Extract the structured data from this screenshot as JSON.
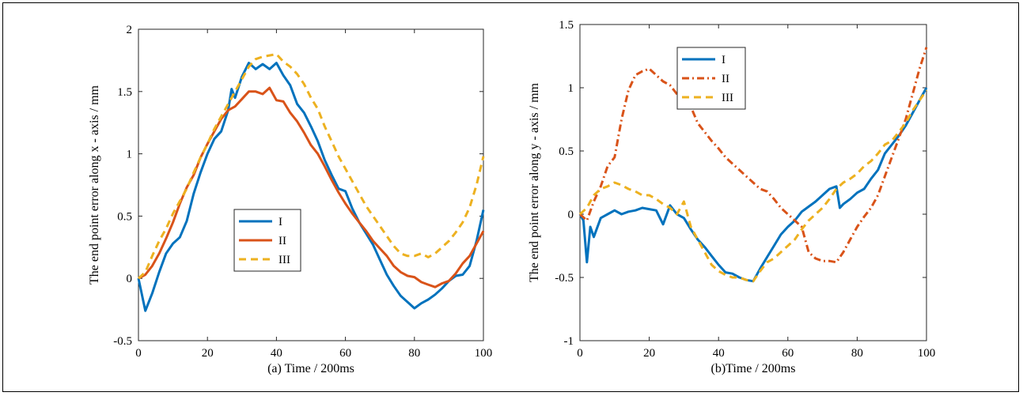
{
  "chart_data": [
    {
      "type": "line",
      "xlabel": "(a) Time / 200ms",
      "ylabel": "The end point error along x - axis / mm",
      "xlim": [
        0,
        100
      ],
      "ylim": [
        -0.5,
        2
      ],
      "xticks": [
        "0",
        "20",
        "40",
        "60",
        "80",
        "100"
      ],
      "yticks": [
        "-0.5",
        "0",
        "0.5",
        "1",
        "1.5",
        "2"
      ],
      "legend_placement": "center-left",
      "series": [
        {
          "name": "I",
          "color": "#0072BD",
          "dash": "solid",
          "x": [
            0,
            2,
            4,
            6,
            8,
            10,
            12,
            14,
            16,
            18,
            20,
            22,
            24,
            26,
            27,
            28,
            30,
            32,
            34,
            36,
            38,
            40,
            42,
            44,
            46,
            48,
            50,
            52,
            54,
            56,
            58,
            60,
            62,
            64,
            66,
            68,
            70,
            72,
            74,
            76,
            78,
            80,
            82,
            84,
            86,
            88,
            90,
            92,
            94,
            96,
            98,
            100
          ],
          "y": [
            0,
            -0.26,
            -0.12,
            0.05,
            0.2,
            0.28,
            0.33,
            0.46,
            0.68,
            0.85,
            1.0,
            1.12,
            1.18,
            1.35,
            1.52,
            1.45,
            1.62,
            1.73,
            1.68,
            1.72,
            1.68,
            1.73,
            1.63,
            1.55,
            1.4,
            1.33,
            1.22,
            1.1,
            0.95,
            0.83,
            0.72,
            0.7,
            0.56,
            0.45,
            0.36,
            0.27,
            0.15,
            0.03,
            -0.06,
            -0.14,
            -0.19,
            -0.24,
            -0.2,
            -0.17,
            -0.13,
            -0.08,
            -0.02,
            0.02,
            0.03,
            0.1,
            0.3,
            0.55
          ]
        },
        {
          "name": "II",
          "color": "#D95319",
          "dash": "solid",
          "x": [
            0,
            2,
            4,
            6,
            8,
            10,
            12,
            14,
            16,
            18,
            20,
            22,
            24,
            26,
            28,
            30,
            32,
            34,
            36,
            38,
            40,
            42,
            44,
            46,
            48,
            50,
            52,
            54,
            56,
            58,
            60,
            62,
            64,
            66,
            68,
            70,
            72,
            74,
            76,
            78,
            80,
            82,
            84,
            86,
            88,
            90,
            92,
            94,
            96,
            98,
            100
          ],
          "y": [
            0,
            0.03,
            0.1,
            0.2,
            0.32,
            0.45,
            0.6,
            0.73,
            0.83,
            0.97,
            1.08,
            1.18,
            1.28,
            1.35,
            1.38,
            1.44,
            1.5,
            1.5,
            1.48,
            1.53,
            1.43,
            1.42,
            1.33,
            1.26,
            1.17,
            1.07,
            1.0,
            0.9,
            0.79,
            0.69,
            0.6,
            0.52,
            0.45,
            0.38,
            0.3,
            0.24,
            0.18,
            0.1,
            0.05,
            0.02,
            0.01,
            -0.03,
            -0.05,
            -0.07,
            -0.04,
            -0.02,
            0.04,
            0.12,
            0.18,
            0.28,
            0.38
          ]
        },
        {
          "name": "III",
          "color": "#EDB120",
          "dash": "dash",
          "x": [
            0,
            2,
            4,
            6,
            8,
            10,
            12,
            14,
            16,
            18,
            20,
            22,
            24,
            26,
            28,
            30,
            32,
            34,
            36,
            38,
            40,
            42,
            44,
            46,
            48,
            50,
            52,
            54,
            56,
            58,
            60,
            62,
            64,
            66,
            68,
            70,
            72,
            74,
            76,
            78,
            80,
            82,
            84,
            86,
            88,
            90,
            92,
            94,
            96,
            98,
            100
          ],
          "y": [
            0,
            0.05,
            0.18,
            0.3,
            0.4,
            0.52,
            0.62,
            0.72,
            0.85,
            0.97,
            1.08,
            1.2,
            1.3,
            1.4,
            1.5,
            1.6,
            1.7,
            1.76,
            1.78,
            1.79,
            1.8,
            1.74,
            1.7,
            1.64,
            1.56,
            1.45,
            1.36,
            1.22,
            1.1,
            0.98,
            0.88,
            0.78,
            0.68,
            0.58,
            0.5,
            0.42,
            0.34,
            0.26,
            0.2,
            0.18,
            0.18,
            0.2,
            0.17,
            0.2,
            0.25,
            0.3,
            0.37,
            0.45,
            0.57,
            0.75,
            0.98
          ]
        }
      ]
    },
    {
      "type": "line",
      "xlabel": "(b)Time / 200ms",
      "ylabel": "The end point error along y - axis / mm",
      "xlim": [
        0,
        100
      ],
      "ylim": [
        -1,
        1.5
      ],
      "xticks": [
        "0",
        "20",
        "40",
        "60",
        "80",
        "100"
      ],
      "yticks": [
        "-1",
        "-0.5",
        "0",
        "0.5",
        "1",
        "1.5"
      ],
      "legend_placement": "top-left",
      "series": [
        {
          "name": "I",
          "color": "#0072BD",
          "dash": "solid",
          "x": [
            0,
            1,
            2,
            3,
            4,
            6,
            8,
            10,
            12,
            14,
            16,
            18,
            20,
            22,
            24,
            26,
            28,
            30,
            32,
            34,
            36,
            38,
            40,
            42,
            44,
            46,
            48,
            50,
            52,
            54,
            56,
            58,
            60,
            62,
            64,
            66,
            68,
            70,
            72,
            74,
            75,
            76,
            78,
            80,
            82,
            84,
            86,
            88,
            90,
            92,
            94,
            96,
            98,
            100
          ],
          "y": [
            0,
            -0.05,
            -0.38,
            -0.1,
            -0.18,
            -0.03,
            0.0,
            0.03,
            0.0,
            0.02,
            0.03,
            0.05,
            0.04,
            0.03,
            -0.08,
            0.07,
            0.0,
            -0.03,
            -0.12,
            -0.2,
            -0.26,
            -0.33,
            -0.4,
            -0.46,
            -0.47,
            -0.5,
            -0.52,
            -0.53,
            -0.43,
            -0.34,
            -0.25,
            -0.16,
            -0.1,
            -0.05,
            0.02,
            0.06,
            0.1,
            0.15,
            0.2,
            0.22,
            0.05,
            0.08,
            0.12,
            0.17,
            0.2,
            0.28,
            0.35,
            0.48,
            0.55,
            0.62,
            0.7,
            0.8,
            0.9,
            1.0
          ]
        },
        {
          "name": "II",
          "color": "#D95319",
          "dash": "dashdot",
          "x": [
            0,
            2,
            4,
            6,
            8,
            10,
            12,
            14,
            16,
            18,
            20,
            22,
            24,
            26,
            28,
            30,
            32,
            34,
            36,
            38,
            40,
            42,
            44,
            46,
            48,
            50,
            52,
            54,
            56,
            58,
            60,
            62,
            64,
            66,
            68,
            70,
            72,
            74,
            76,
            78,
            80,
            82,
            84,
            86,
            88,
            90,
            92,
            94,
            96,
            98,
            100
          ],
          "y": [
            0,
            -0.05,
            0.1,
            0.22,
            0.38,
            0.45,
            0.75,
            0.98,
            1.1,
            1.13,
            1.15,
            1.1,
            1.05,
            1.02,
            0.95,
            0.9,
            0.85,
            0.72,
            0.65,
            0.58,
            0.52,
            0.45,
            0.4,
            0.35,
            0.3,
            0.25,
            0.2,
            0.18,
            0.12,
            0.05,
            0.0,
            -0.05,
            -0.1,
            -0.3,
            -0.35,
            -0.37,
            -0.37,
            -0.38,
            -0.3,
            -0.2,
            -0.1,
            -0.02,
            0.05,
            0.15,
            0.3,
            0.45,
            0.6,
            0.75,
            0.95,
            1.15,
            1.32
          ]
        },
        {
          "name": "III",
          "color": "#EDB120",
          "dash": "dash",
          "x": [
            0,
            2,
            4,
            6,
            8,
            10,
            12,
            14,
            16,
            18,
            20,
            22,
            24,
            26,
            28,
            30,
            32,
            34,
            36,
            38,
            40,
            42,
            44,
            46,
            48,
            50,
            52,
            54,
            56,
            58,
            60,
            62,
            64,
            66,
            68,
            70,
            72,
            74,
            76,
            78,
            80,
            82,
            84,
            86,
            88,
            90,
            92,
            94,
            96,
            98,
            100
          ],
          "y": [
            0,
            0.05,
            0.15,
            0.2,
            0.22,
            0.25,
            0.23,
            0.2,
            0.18,
            0.15,
            0.15,
            0.12,
            0.08,
            0.05,
            0.0,
            0.1,
            -0.1,
            -0.2,
            -0.3,
            -0.4,
            -0.45,
            -0.48,
            -0.5,
            -0.5,
            -0.52,
            -0.53,
            -0.45,
            -0.38,
            -0.35,
            -0.3,
            -0.25,
            -0.2,
            -0.12,
            -0.05,
            0.0,
            0.05,
            0.12,
            0.2,
            0.25,
            0.28,
            0.32,
            0.38,
            0.42,
            0.48,
            0.55,
            0.58,
            0.65,
            0.72,
            0.82,
            0.9,
            0.98
          ]
        }
      ]
    }
  ]
}
